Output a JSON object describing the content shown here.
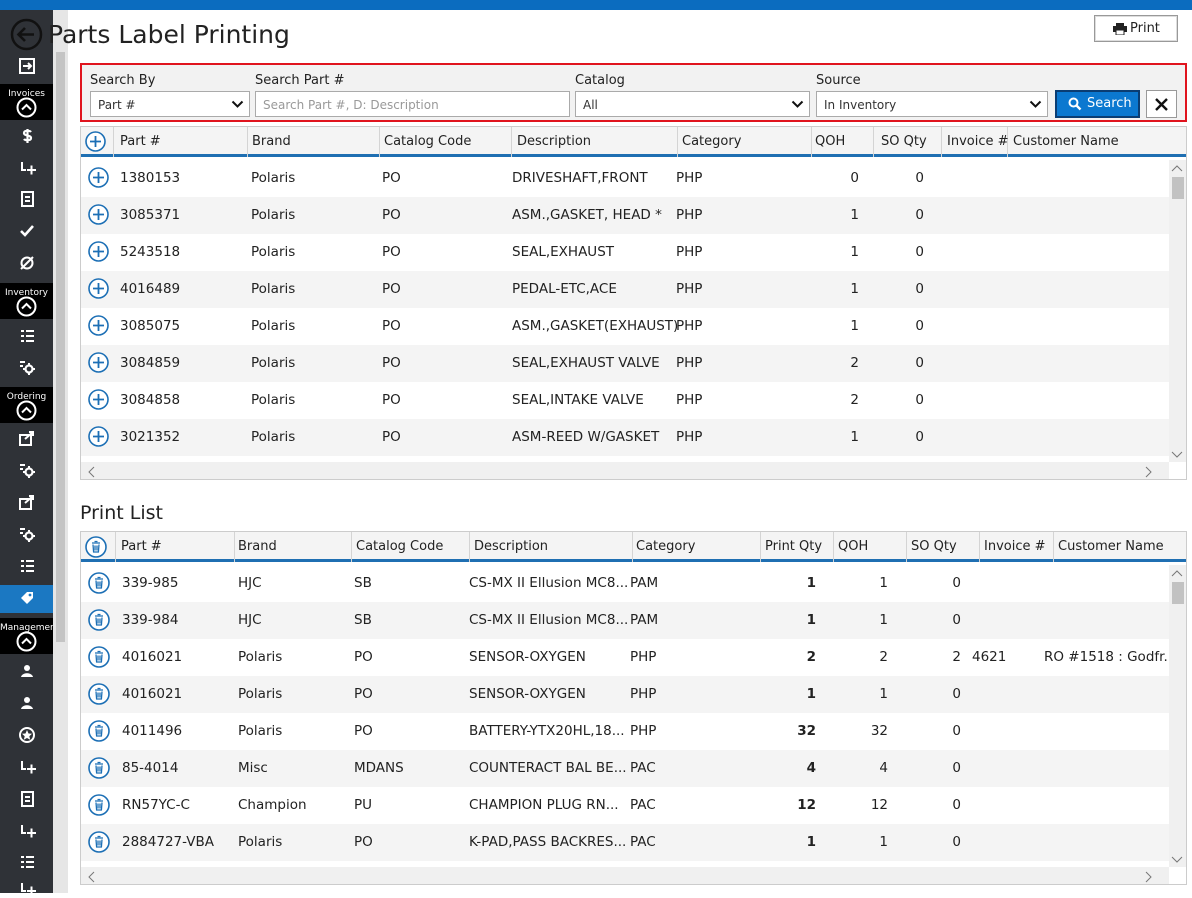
{
  "header": {
    "title": "Parts Label Printing",
    "print_button": "Print"
  },
  "sidebar": {
    "sections": [
      "Invoices",
      "Inventory",
      "Ordering",
      "Management"
    ]
  },
  "search": {
    "fields": [
      {
        "label": "Search By",
        "value": "Part #"
      },
      {
        "label": "Search Part #",
        "placeholder": "Search Part #, D: Description"
      },
      {
        "label": "Catalog",
        "value": "All"
      },
      {
        "label": "Source",
        "value": "In Inventory"
      }
    ],
    "button": "Search"
  },
  "results": {
    "columns": [
      "Part #",
      "Brand",
      "Catalog Code",
      "Description",
      "Category",
      "QOH",
      "SO Qty",
      "Invoice #",
      "Customer Name"
    ],
    "rows": [
      [
        "1380153",
        "Polaris",
        "PO",
        "DRIVESHAFT,FRONT",
        "PHP",
        0,
        0
      ],
      [
        "3085371",
        "Polaris",
        "PO",
        "ASM.,GASKET, HEAD *",
        "PHP",
        1,
        0
      ],
      [
        "5243518",
        "Polaris",
        "PO",
        "SEAL,EXHAUST",
        "PHP",
        1,
        0
      ],
      [
        "4016489",
        "Polaris",
        "PO",
        "PEDAL-ETC,ACE",
        "PHP",
        1,
        0
      ],
      [
        "3085075",
        "Polaris",
        "PO",
        "ASM.,GASKET(EXHAUST)",
        "PHP",
        1,
        0
      ],
      [
        "3084859",
        "Polaris",
        "PO",
        "SEAL,EXHAUST VALVE",
        "PHP",
        2,
        0
      ],
      [
        "3084858",
        "Polaris",
        "PO",
        "SEAL,INTAKE VALVE",
        "PHP",
        2,
        0
      ],
      [
        "3021352",
        "Polaris",
        "PO",
        "ASM-REED W/GASKET",
        "PHP",
        1,
        0
      ]
    ]
  },
  "print_list": {
    "title": "Print List",
    "columns": [
      "Part #",
      "Brand",
      "Catalog Code",
      "Description",
      "Category",
      "Print Qty",
      "QOH",
      "SO Qty",
      "Invoice #",
      "Customer Name"
    ],
    "rows": [
      [
        "339-985",
        "HJC",
        "SB",
        "CS-MX II Ellusion MC8...",
        "PAM",
        1,
        1,
        0
      ],
      [
        "339-984",
        "HJC",
        "SB",
        "CS-MX II Ellusion MC8...",
        "PAM",
        1,
        1,
        0
      ],
      [
        "4016021",
        "Polaris",
        "PO",
        "SENSOR-OXYGEN",
        "PHP",
        2,
        2,
        2,
        "4621",
        "RO #1518 : Godfr..."
      ],
      [
        "4016021",
        "Polaris",
        "PO",
        "SENSOR-OXYGEN",
        "PHP",
        1,
        1,
        0
      ],
      [
        "4011496",
        "Polaris",
        "PO",
        "BATTERY-YTX20HL,18...",
        "PHP",
        32,
        32,
        0
      ],
      [
        "85-4014",
        "Misc",
        "MDANS",
        "COUNTERACT BAL BE...",
        "PAC",
        4,
        4,
        0
      ],
      [
        "RN57YC-C",
        "Champion",
        "PU",
        "CHAMPION PLUG RN...",
        "PAC",
        12,
        12,
        0
      ],
      [
        "2884727-VBA",
        "Polaris",
        "PO",
        "K-PAD,PASS BACKRES...",
        "PAC",
        1,
        1,
        0
      ]
    ]
  }
}
